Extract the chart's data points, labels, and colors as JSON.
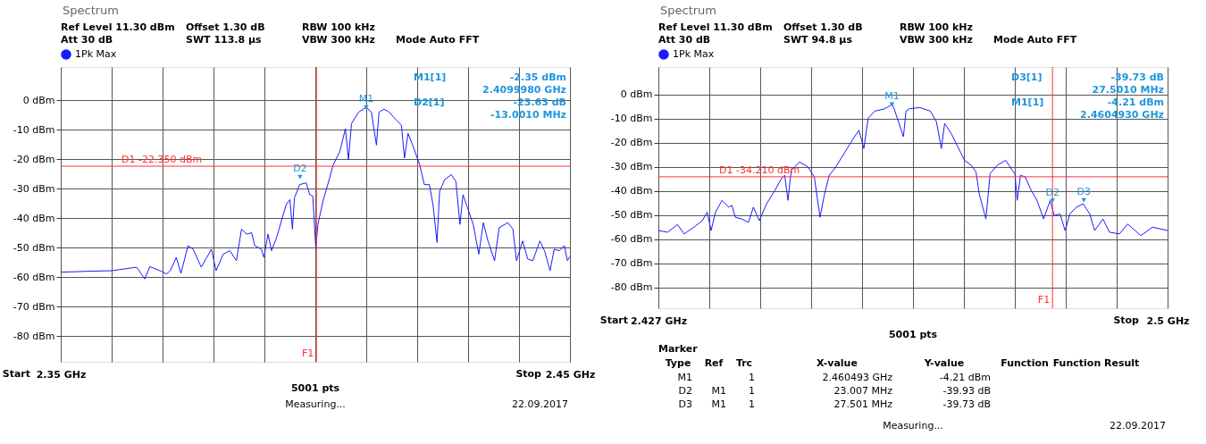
{
  "chart_data": [
    {
      "type": "line",
      "title": "Spectrum",
      "x": [
        2.35,
        2.3551,
        2.36,
        2.3649,
        2.3665,
        2.3675,
        2.3695,
        2.3708,
        2.3715,
        2.3727,
        2.3736,
        2.375,
        2.376,
        2.3776,
        2.3796,
        2.3805,
        2.3819,
        2.3832,
        2.3845,
        2.3855,
        2.3865,
        2.3875,
        2.3881,
        2.3894,
        2.3899,
        2.3907,
        2.3914,
        2.3924,
        2.3937,
        2.3943,
        2.395,
        2.3955,
        2.3959,
        2.3969,
        2.3982,
        2.3989,
        2.3995,
        2.4001,
        2.4005,
        2.4015,
        2.4028,
        2.4035,
        2.4048,
        2.4059,
        2.4065,
        2.4071,
        2.4085,
        2.41,
        2.411,
        2.412,
        2.4125,
        2.4135,
        2.4145,
        2.4159,
        2.4169,
        2.4175,
        2.4182,
        2.4191,
        2.4205,
        2.4214,
        2.4224,
        2.4231,
        2.4239,
        2.4244,
        2.4254,
        2.4267,
        2.4276,
        2.4284,
        2.429,
        2.4299,
        2.431,
        2.4321,
        2.433,
        2.4339,
        2.4352,
        2.4361,
        2.4378,
        2.4388,
        2.4395,
        2.4407,
        2.4417,
        2.4427,
        2.4441,
        2.445,
        2.4461,
        2.4469,
        2.4479,
        2.4489,
        2.4495,
        2.45
      ],
      "series": [
        {
          "name": "1Pk Max",
          "color": "#1a1aff",
          "values": [
            -58.3,
            -58.0,
            -57.8,
            -56.6,
            -60.6,
            -56.4,
            -57.8,
            -58.9,
            -57.8,
            -53.3,
            -58.7,
            -49.3,
            -50.5,
            -56.6,
            -50.5,
            -57.8,
            -52.2,
            -51.0,
            -54.4,
            -43.7,
            -45.4,
            -44.9,
            -49.3,
            -50.5,
            -53.3,
            -45.4,
            -51.0,
            -46.5,
            -38.7,
            -35.3,
            -33.7,
            -43.7,
            -33.1,
            -28.6,
            -28.0,
            -32.0,
            -32.5,
            -50.5,
            -42.1,
            -34.2,
            -26.4,
            -21.9,
            -17.4,
            -9.6,
            -20.2,
            -7.9,
            -4.0,
            -2.35,
            -4.0,
            -15.2,
            -4.0,
            -3.0,
            -4.0,
            -6.7,
            -8.4,
            -19.6,
            -11.2,
            -15.2,
            -21.9,
            -28.6,
            -28.6,
            -35.3,
            -48.2,
            -30.9,
            -26.9,
            -25.2,
            -27.5,
            -42.1,
            -32.0,
            -36.5,
            -42.1,
            -52.2,
            -41.5,
            -47.7,
            -54.4,
            -43.2,
            -41.5,
            -43.7,
            -54.4,
            -47.7,
            -53.8,
            -54.4,
            -47.7,
            -51.0,
            -57.8,
            -50.5,
            -51.0,
            -49.3,
            -54.4,
            -53.0
          ]
        }
      ],
      "xlim": [
        2.35,
        2.45
      ],
      "xticks": [
        {
          "value": 2.35,
          "label": "2.35 GHz"
        },
        {
          "value": 2.36,
          "label": null
        },
        {
          "value": 2.37,
          "label": null
        },
        {
          "value": 2.38,
          "label": null
        },
        {
          "value": 2.39,
          "label": null
        },
        {
          "value": 2.4,
          "label": null
        },
        {
          "value": 2.41,
          "label": null
        },
        {
          "value": 2.42,
          "label": null
        },
        {
          "value": 2.43,
          "label": null
        },
        {
          "value": 2.44,
          "label": null
        },
        {
          "value": 2.45,
          "label": "2.45 GHz"
        }
      ],
      "ylim": [
        -88.7,
        11.3
      ],
      "yticks": [
        {
          "value": 0,
          "label": "0 dBm"
        },
        {
          "value": -10,
          "label": "-10 dBm"
        },
        {
          "value": -20,
          "label": "-20 dBm"
        },
        {
          "value": -30,
          "label": "-30 dBm"
        },
        {
          "value": -40,
          "label": "-40 dBm"
        },
        {
          "value": -50,
          "label": "-50 dBm"
        },
        {
          "value": -60,
          "label": "-60 dBm"
        },
        {
          "value": -70,
          "label": "-70 dBm"
        },
        {
          "value": -80,
          "label": "-80 dBm"
        }
      ],
      "grid": true,
      "legend": "top left",
      "line_style": "solid",
      "marker": "none",
      "ref_lines": [
        {
          "axis": "y",
          "value": -22.35,
          "label": "D1  -22.350 dBm",
          "color": "#ff3030"
        },
        {
          "axis": "x",
          "value": 2.40022,
          "label": "F1",
          "color": "#ff3030"
        }
      ],
      "annotations": [
        "Ref Level 11.30 dBm",
        "Att 30 dB",
        "Offset 1.30 dB",
        "SWT 113.8 µs",
        "RBW 100 kHz",
        "VBW 300 kHz",
        "Mode Auto FFT",
        "M1[1]",
        "-2.35 dBm",
        "2.4099980 GHz",
        "D2[1]",
        "-23.63 dB",
        "-13.0010 MHz",
        "Start",
        "5001 pts",
        "Stop",
        "Measuring...",
        "22.09.2017",
        {
          "text": "M1",
          "x": 2.409998,
          "y": -2.35
        },
        {
          "text": "D2",
          "x": 2.396997,
          "y": -25.98
        }
      ]
    },
    {
      "type": "line",
      "title": "Spectrum",
      "x": [
        2.427,
        2.42832,
        2.42974,
        2.43069,
        2.43211,
        2.43329,
        2.434,
        2.43456,
        2.43518,
        2.43612,
        2.43707,
        2.43754,
        2.43802,
        2.43896,
        2.43991,
        2.44062,
        2.44147,
        2.44251,
        2.44369,
        2.44464,
        2.44511,
        2.44558,
        2.44605,
        2.44724,
        2.44842,
        2.44936,
        2.45017,
        2.45078,
        2.45149,
        2.45244,
        2.45362,
        2.4548,
        2.45575,
        2.45646,
        2.45707,
        2.458,
        2.4595,
        2.460493,
        2.4608,
        2.46213,
        2.4625,
        2.463,
        2.4645,
        2.466,
        2.46686,
        2.46757,
        2.46804,
        2.46898,
        2.46993,
        2.47088,
        2.47182,
        2.47253,
        2.473,
        2.47395,
        2.47456,
        2.4756,
        2.47679,
        2.47773,
        2.47811,
        2.47844,
        2.47892,
        2.47962,
        2.48033,
        2.48128,
        2.48222,
        2.48317,
        2.48374,
        2.48459,
        2.4853,
        2.48601,
        2.48695,
        2.4879,
        2.48884,
        2.48955,
        2.49073,
        2.49168,
        2.4931,
        2.49428,
        2.49617,
        2.49783,
        2.5
      ],
      "series": [
        {
          "name": "1Pk Max",
          "color": "#1a1aff",
          "values": [
            -56.5,
            -57.2,
            -54.0,
            -57.9,
            -55.1,
            -52.4,
            -48.9,
            -56.5,
            -48.9,
            -44.0,
            -46.8,
            -46.1,
            -51.0,
            -51.7,
            -53.1,
            -46.8,
            -52.4,
            -45.4,
            -39.9,
            -35.0,
            -33.6,
            -44.0,
            -31.5,
            -28.1,
            -30.1,
            -34.3,
            -51.0,
            -41.9,
            -33.6,
            -30.1,
            -24.6,
            -19.0,
            -14.9,
            -22.5,
            -10.0,
            -7.0,
            -6.0,
            -4.21,
            -6.0,
            -17.6,
            -7.0,
            -6.0,
            -5.5,
            -7.0,
            -11.4,
            -22.5,
            -12.1,
            -16.3,
            -21.8,
            -27.4,
            -29.4,
            -32.2,
            -41.3,
            -51.7,
            -32.9,
            -29.4,
            -27.4,
            -31.5,
            -32.9,
            -44.0,
            -33.6,
            -34.3,
            -39.2,
            -44.0,
            -51.7,
            -44.0,
            -50.3,
            -49.6,
            -56.5,
            -49.6,
            -46.8,
            -45.4,
            -49.6,
            -56.5,
            -51.7,
            -57.2,
            -57.9,
            -53.8,
            -58.6,
            -55.1,
            -56.5
          ]
        }
      ],
      "xlim": [
        2.427,
        2.5
      ],
      "xticks": [
        {
          "value": 2.427,
          "label": "2.427 GHz"
        },
        {
          "value": 2.4343,
          "label": null
        },
        {
          "value": 2.4416,
          "label": null
        },
        {
          "value": 2.4489,
          "label": null
        },
        {
          "value": 2.4562,
          "label": null
        },
        {
          "value": 2.4635,
          "label": null
        },
        {
          "value": 2.4708,
          "label": null
        },
        {
          "value": 2.4781,
          "label": null
        },
        {
          "value": 2.4854,
          "label": null
        },
        {
          "value": 2.4927,
          "label": null
        },
        {
          "value": 2.5,
          "label": "2.5 GHz"
        }
      ],
      "ylim": [
        -88.7,
        11.3
      ],
      "yticks": [
        {
          "value": 0,
          "label": "0 dBm"
        },
        {
          "value": -10,
          "label": "-10 dBm"
        },
        {
          "value": -20,
          "label": "-20 dBm"
        },
        {
          "value": -30,
          "label": "-30 dBm"
        },
        {
          "value": -40,
          "label": "-40 dBm"
        },
        {
          "value": -50,
          "label": "-50 dBm"
        },
        {
          "value": -60,
          "label": "-60 dBm"
        },
        {
          "value": -70,
          "label": "-70 dBm"
        },
        {
          "value": -80,
          "label": "-80 dBm"
        }
      ],
      "grid": true,
      "legend": "top left",
      "line_style": "solid",
      "marker": "none",
      "ref_lines": [
        {
          "axis": "y",
          "value": -34.21,
          "label": "D1  -34.210 dBm",
          "color": "#ff3030"
        },
        {
          "axis": "x",
          "value": 2.4835,
          "label": "F1",
          "color": "#ff3030"
        }
      ],
      "annotations": [
        "Ref Level 11.30 dBm",
        "Att 30 dB",
        "Offset 1.30 dB",
        "SWT 94.8 µs",
        "RBW 100 kHz",
        "VBW 300 kHz",
        "Mode Auto FFT",
        "D3[1]",
        "-39.73 dB",
        "27.5010 MHz",
        "M1[1]",
        "-4.21 dBm",
        "2.4604930 GHz",
        "Start",
        "5001 pts",
        "Stop",
        "Measuring...",
        "22.09.2017",
        "Marker",
        "Type",
        "Ref",
        "Trc",
        "X-value",
        "Y-value",
        "Function",
        "Function Result",
        "M1",
        "1",
        "2.460493 GHz",
        "-4.21 dBm",
        "D2",
        "M1",
        "1",
        "23.007 MHz",
        "-39.93 dB",
        "D3",
        "M1",
        "1",
        "27.501 MHz",
        "-39.73 dB",
        {
          "text": "M1",
          "x": 2.460493,
          "y": -4.21
        },
        {
          "text": "D2",
          "x": 2.4835,
          "y": -44.14
        },
        {
          "text": "D3",
          "x": 2.487994,
          "y": -43.94
        }
      ]
    }
  ]
}
